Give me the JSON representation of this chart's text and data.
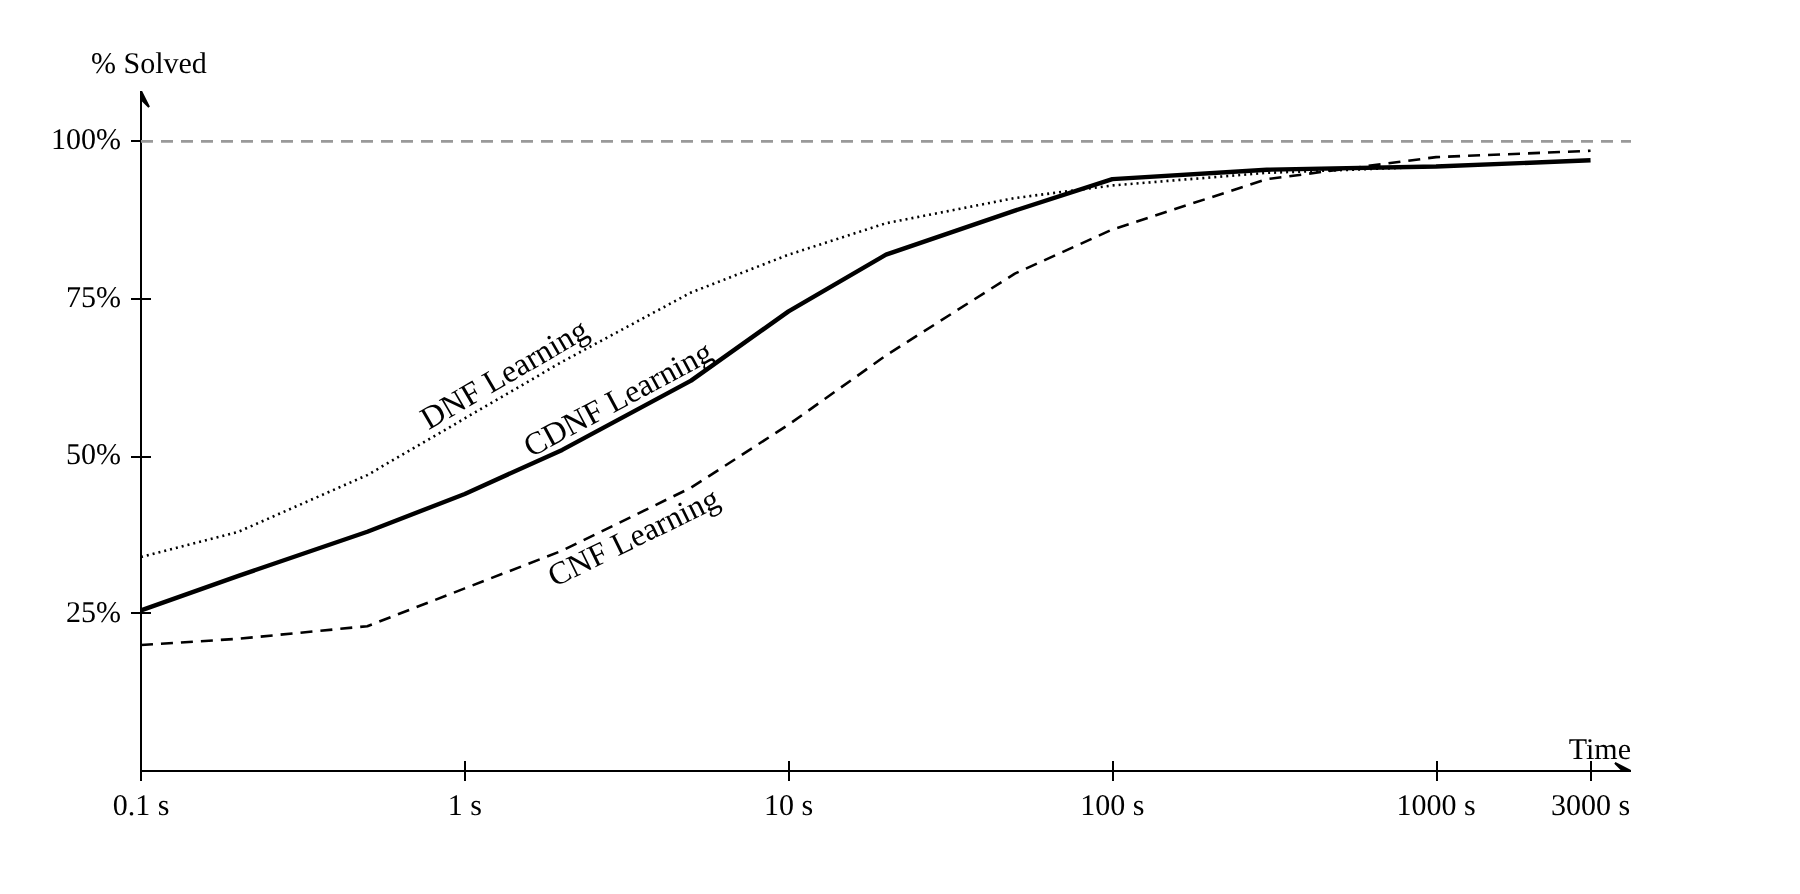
{
  "chart_data": {
    "type": "line",
    "xlabel": "Time",
    "ylabel": "% Solved",
    "log": "x",
    "grid": false,
    "x": [
      0.1,
      0.2,
      0.5,
      1,
      2,
      5,
      10,
      20,
      50,
      100,
      300,
      1000,
      3000
    ],
    "series": [
      {
        "name": "DNF Learning",
        "color": "#000000",
        "line_style": "dotted",
        "values": [
          34,
          38,
          47,
          56,
          65,
          76,
          82,
          87,
          91,
          93,
          95,
          96,
          97
        ]
      },
      {
        "name": "CDNF Learning",
        "color": "#000000",
        "line_style": "solid",
        "values": [
          25.5,
          31,
          38,
          44,
          51,
          62,
          73,
          82,
          89,
          94,
          95.5,
          96,
          97
        ]
      },
      {
        "name": "CNF Learning",
        "color": "#000000",
        "line_style": "dashed",
        "values": [
          20,
          21,
          23,
          29,
          35,
          45,
          55,
          66,
          79,
          86,
          94,
          97.5,
          98.5
        ]
      }
    ],
    "xlim": [
      0.1,
      4000
    ],
    "ylim": [
      0,
      108
    ],
    "xticks": [
      {
        "value": 0.1,
        "label": "0.1 s"
      },
      {
        "value": 1,
        "label": "1 s"
      },
      {
        "value": 10,
        "label": "10 s"
      },
      {
        "value": 100,
        "label": "100 s"
      },
      {
        "value": 1000,
        "label": "1000 s"
      },
      {
        "value": 3000,
        "label": "3000 s"
      }
    ],
    "yticks": [
      {
        "value": 25,
        "label": "25%"
      },
      {
        "value": 50,
        "label": "50%"
      },
      {
        "value": 75,
        "label": "75%"
      },
      {
        "value": 100,
        "label": "100%"
      }
    ],
    "ref_lines": [
      {
        "axis": "y",
        "value": 100,
        "color": "#999999",
        "line_style": "dashed"
      }
    ]
  }
}
